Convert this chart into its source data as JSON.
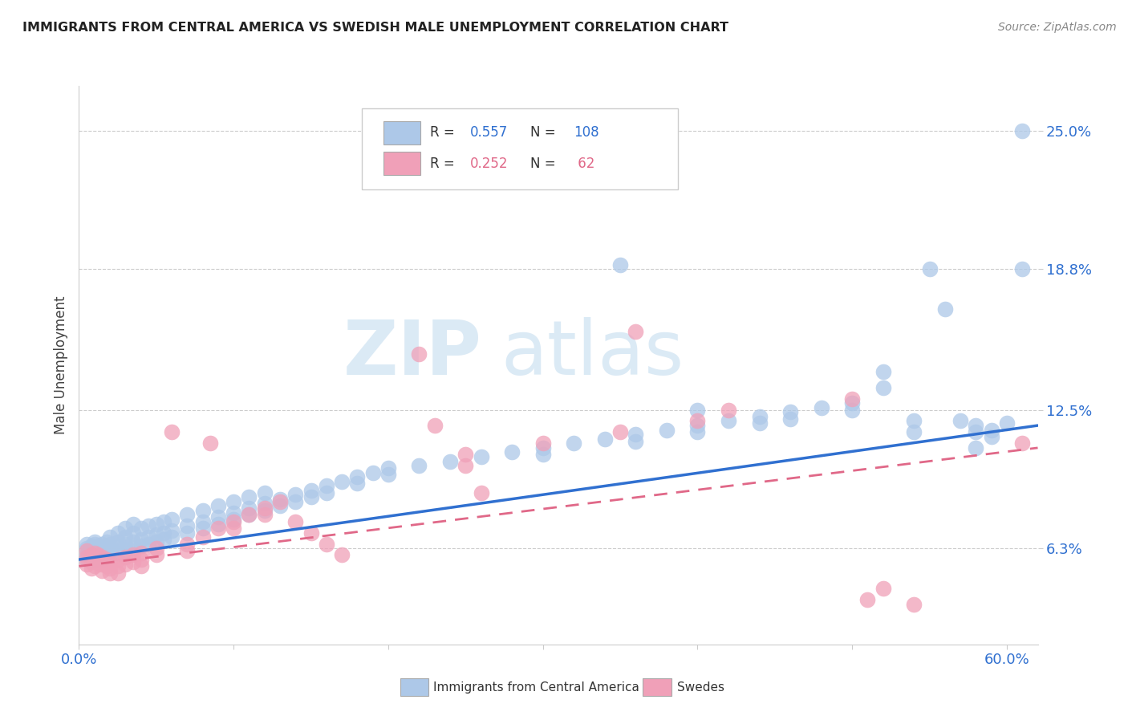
{
  "title": "IMMIGRANTS FROM CENTRAL AMERICA VS SWEDISH MALE UNEMPLOYMENT CORRELATION CHART",
  "source": "Source: ZipAtlas.com",
  "ylabel": "Male Unemployment",
  "xlim": [
    0.0,
    0.62
  ],
  "ylim": [
    0.02,
    0.27
  ],
  "ytick_vals": [
    0.063,
    0.125,
    0.188,
    0.25
  ],
  "ytick_labels": [
    "6.3%",
    "12.5%",
    "18.8%",
    "25.0%"
  ],
  "xtick_vals": [
    0.0,
    0.1,
    0.2,
    0.3,
    0.4,
    0.5,
    0.6
  ],
  "xtick_labels": [
    "0.0%",
    "",
    "",
    "",
    "",
    "",
    "60.0%"
  ],
  "blue_color": "#adc8e8",
  "pink_color": "#f0a0b8",
  "blue_line_color": "#3070d0",
  "pink_line_color": "#e06888",
  "ytick_color": "#3070d0",
  "xtick_color": "#3070d0",
  "watermark_zip": "ZIP",
  "watermark_atlas": "atlas",
  "blue_scatter": [
    [
      0.005,
      0.063
    ],
    [
      0.005,
      0.06
    ],
    [
      0.005,
      0.065
    ],
    [
      0.005,
      0.058
    ],
    [
      0.008,
      0.062
    ],
    [
      0.008,
      0.059
    ],
    [
      0.008,
      0.064
    ],
    [
      0.008,
      0.061
    ],
    [
      0.01,
      0.063
    ],
    [
      0.01,
      0.06
    ],
    [
      0.01,
      0.065
    ],
    [
      0.01,
      0.058
    ],
    [
      0.01,
      0.066
    ],
    [
      0.012,
      0.062
    ],
    [
      0.012,
      0.059
    ],
    [
      0.012,
      0.064
    ],
    [
      0.012,
      0.061
    ],
    [
      0.015,
      0.063
    ],
    [
      0.015,
      0.06
    ],
    [
      0.015,
      0.065
    ],
    [
      0.015,
      0.058
    ],
    [
      0.018,
      0.064
    ],
    [
      0.018,
      0.061
    ],
    [
      0.018,
      0.066
    ],
    [
      0.02,
      0.063
    ],
    [
      0.02,
      0.06
    ],
    [
      0.02,
      0.065
    ],
    [
      0.02,
      0.068
    ],
    [
      0.025,
      0.064
    ],
    [
      0.025,
      0.061
    ],
    [
      0.025,
      0.066
    ],
    [
      0.025,
      0.07
    ],
    [
      0.03,
      0.065
    ],
    [
      0.03,
      0.062
    ],
    [
      0.03,
      0.068
    ],
    [
      0.03,
      0.072
    ],
    [
      0.035,
      0.066
    ],
    [
      0.035,
      0.063
    ],
    [
      0.035,
      0.07
    ],
    [
      0.035,
      0.074
    ],
    [
      0.04,
      0.067
    ],
    [
      0.04,
      0.064
    ],
    [
      0.04,
      0.072
    ],
    [
      0.045,
      0.068
    ],
    [
      0.045,
      0.065
    ],
    [
      0.045,
      0.073
    ],
    [
      0.05,
      0.069
    ],
    [
      0.05,
      0.066
    ],
    [
      0.05,
      0.074
    ],
    [
      0.055,
      0.07
    ],
    [
      0.055,
      0.067
    ],
    [
      0.055,
      0.075
    ],
    [
      0.06,
      0.071
    ],
    [
      0.06,
      0.068
    ],
    [
      0.06,
      0.076
    ],
    [
      0.07,
      0.073
    ],
    [
      0.07,
      0.07
    ],
    [
      0.07,
      0.078
    ],
    [
      0.08,
      0.075
    ],
    [
      0.08,
      0.072
    ],
    [
      0.08,
      0.08
    ],
    [
      0.09,
      0.077
    ],
    [
      0.09,
      0.074
    ],
    [
      0.09,
      0.082
    ],
    [
      0.1,
      0.079
    ],
    [
      0.1,
      0.076
    ],
    [
      0.1,
      0.084
    ],
    [
      0.11,
      0.081
    ],
    [
      0.11,
      0.078
    ],
    [
      0.11,
      0.086
    ],
    [
      0.12,
      0.083
    ],
    [
      0.12,
      0.08
    ],
    [
      0.12,
      0.088
    ],
    [
      0.13,
      0.085
    ],
    [
      0.13,
      0.082
    ],
    [
      0.14,
      0.087
    ],
    [
      0.14,
      0.084
    ],
    [
      0.15,
      0.089
    ],
    [
      0.15,
      0.086
    ],
    [
      0.16,
      0.091
    ],
    [
      0.16,
      0.088
    ],
    [
      0.17,
      0.093
    ],
    [
      0.18,
      0.095
    ],
    [
      0.18,
      0.092
    ],
    [
      0.19,
      0.097
    ],
    [
      0.2,
      0.099
    ],
    [
      0.2,
      0.096
    ],
    [
      0.22,
      0.1
    ],
    [
      0.24,
      0.102
    ],
    [
      0.26,
      0.104
    ],
    [
      0.28,
      0.106
    ],
    [
      0.3,
      0.108
    ],
    [
      0.3,
      0.105
    ],
    [
      0.32,
      0.11
    ],
    [
      0.34,
      0.112
    ],
    [
      0.36,
      0.114
    ],
    [
      0.36,
      0.111
    ],
    [
      0.38,
      0.116
    ],
    [
      0.4,
      0.118
    ],
    [
      0.4,
      0.115
    ],
    [
      0.4,
      0.125
    ],
    [
      0.42,
      0.12
    ],
    [
      0.44,
      0.122
    ],
    [
      0.44,
      0.119
    ],
    [
      0.46,
      0.124
    ],
    [
      0.46,
      0.121
    ],
    [
      0.48,
      0.126
    ],
    [
      0.5,
      0.128
    ],
    [
      0.5,
      0.125
    ],
    [
      0.52,
      0.135
    ],
    [
      0.52,
      0.142
    ],
    [
      0.54,
      0.12
    ],
    [
      0.54,
      0.115
    ],
    [
      0.55,
      0.188
    ],
    [
      0.56,
      0.17
    ],
    [
      0.57,
      0.12
    ],
    [
      0.58,
      0.118
    ],
    [
      0.58,
      0.115
    ],
    [
      0.58,
      0.108
    ],
    [
      0.59,
      0.116
    ],
    [
      0.59,
      0.113
    ],
    [
      0.6,
      0.119
    ],
    [
      0.35,
      0.19
    ],
    [
      0.61,
      0.25
    ],
    [
      0.61,
      0.188
    ]
  ],
  "pink_scatter": [
    [
      0.005,
      0.062
    ],
    [
      0.005,
      0.059
    ],
    [
      0.005,
      0.056
    ],
    [
      0.008,
      0.06
    ],
    [
      0.008,
      0.057
    ],
    [
      0.008,
      0.054
    ],
    [
      0.01,
      0.061
    ],
    [
      0.01,
      0.058
    ],
    [
      0.01,
      0.055
    ],
    [
      0.012,
      0.06
    ],
    [
      0.012,
      0.057
    ],
    [
      0.015,
      0.059
    ],
    [
      0.015,
      0.056
    ],
    [
      0.015,
      0.053
    ],
    [
      0.018,
      0.058
    ],
    [
      0.018,
      0.055
    ],
    [
      0.02,
      0.057
    ],
    [
      0.02,
      0.054
    ],
    [
      0.02,
      0.052
    ],
    [
      0.025,
      0.058
    ],
    [
      0.025,
      0.055
    ],
    [
      0.025,
      0.052
    ],
    [
      0.03,
      0.059
    ],
    [
      0.03,
      0.056
    ],
    [
      0.035,
      0.06
    ],
    [
      0.035,
      0.057
    ],
    [
      0.04,
      0.061
    ],
    [
      0.04,
      0.058
    ],
    [
      0.04,
      0.055
    ],
    [
      0.05,
      0.063
    ],
    [
      0.05,
      0.06
    ],
    [
      0.06,
      0.115
    ],
    [
      0.07,
      0.065
    ],
    [
      0.07,
      0.062
    ],
    [
      0.08,
      0.068
    ],
    [
      0.085,
      0.11
    ],
    [
      0.09,
      0.072
    ],
    [
      0.1,
      0.075
    ],
    [
      0.1,
      0.072
    ],
    [
      0.11,
      0.078
    ],
    [
      0.12,
      0.081
    ],
    [
      0.12,
      0.078
    ],
    [
      0.13,
      0.084
    ],
    [
      0.14,
      0.075
    ],
    [
      0.15,
      0.07
    ],
    [
      0.16,
      0.065
    ],
    [
      0.17,
      0.06
    ],
    [
      0.25,
      0.105
    ],
    [
      0.25,
      0.1
    ],
    [
      0.3,
      0.11
    ],
    [
      0.35,
      0.115
    ],
    [
      0.36,
      0.16
    ],
    [
      0.4,
      0.12
    ],
    [
      0.42,
      0.125
    ],
    [
      0.5,
      0.13
    ],
    [
      0.51,
      0.04
    ],
    [
      0.52,
      0.045
    ],
    [
      0.54,
      0.038
    ],
    [
      0.22,
      0.15
    ],
    [
      0.23,
      0.118
    ],
    [
      0.26,
      0.088
    ],
    [
      0.61,
      0.11
    ]
  ],
  "blue_trend_x": [
    0.0,
    0.62
  ],
  "blue_trend_y": [
    0.058,
    0.118
  ],
  "pink_trend_x": [
    0.0,
    0.62
  ],
  "pink_trend_y": [
    0.055,
    0.108
  ]
}
